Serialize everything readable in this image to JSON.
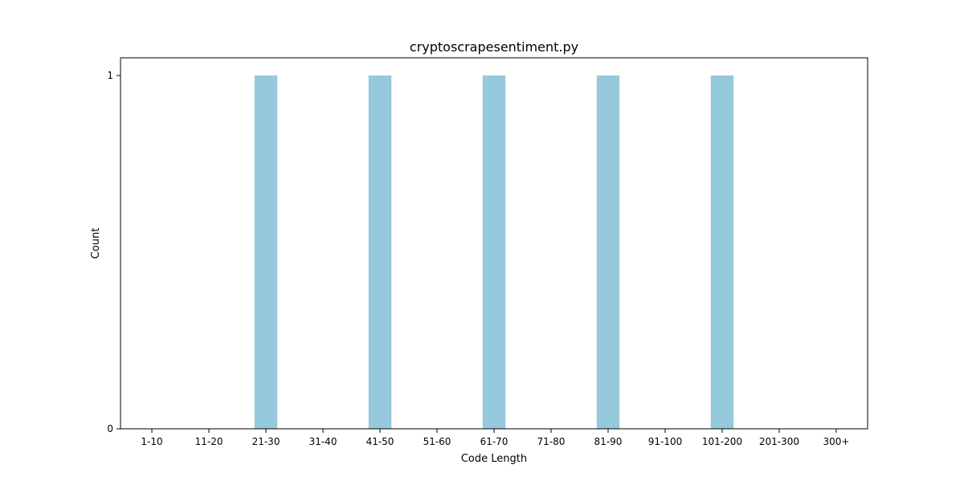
{
  "chart_data": {
    "type": "bar",
    "title": "cryptoscrapesentiment.py",
    "xlabel": "Code Length",
    "ylabel": "Count",
    "categories": [
      "1-10",
      "11-20",
      "21-30",
      "31-40",
      "41-50",
      "51-60",
      "61-70",
      "71-80",
      "81-90",
      "91-100",
      "101-200",
      "201-300",
      "300+"
    ],
    "values": [
      0,
      0,
      1,
      0,
      1,
      0,
      1,
      0,
      1,
      0,
      1,
      0,
      0
    ],
    "ylim": [
      0,
      1.05
    ],
    "yticks": [
      0,
      1
    ],
    "bar_color": "#96c9dc",
    "grid": false,
    "legend": "none"
  }
}
